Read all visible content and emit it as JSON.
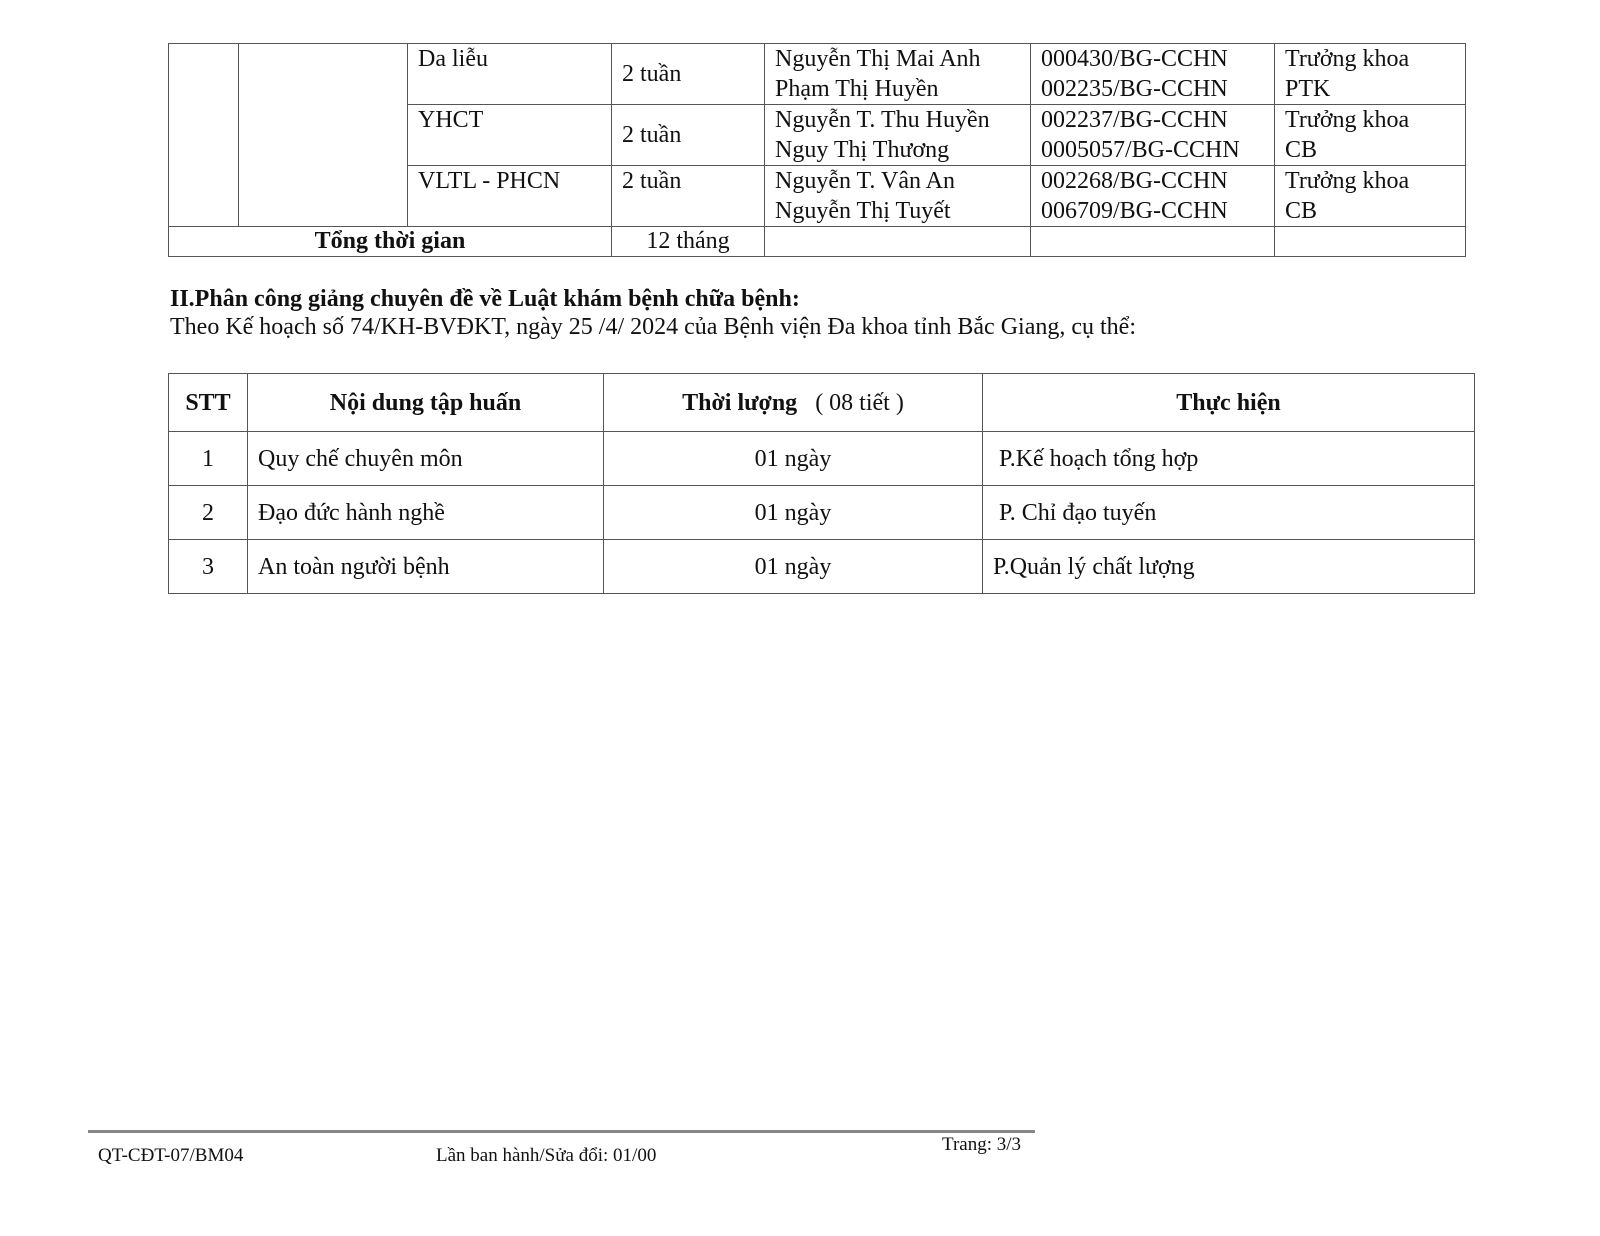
{
  "table1": {
    "rows": [
      {
        "subject": "Da liễu",
        "duration": "2 tuần",
        "names": [
          "Nguyễn Thị Mai Anh",
          "Phạm Thị Huyền"
        ],
        "certs": [
          "000430/BG-CCHN",
          "002235/BG-CCHN"
        ],
        "role": [
          "Trưởng khoa",
          "PTK"
        ]
      },
      {
        "subject": "YHCT",
        "duration": "2 tuần",
        "names": [
          "Nguyễn T. Thu Huyền",
          "Nguy Thị Thương"
        ],
        "certs": [
          "002237/BG-CCHN",
          "0005057/BG-CCHN"
        ],
        "role": [
          "Trưởng khoa",
          "CB"
        ]
      },
      {
        "subject": "VLTL - PHCN",
        "duration": "2 tuần",
        "names": [
          "Nguyễn T. Vân An",
          "Nguyễn Thị Tuyết"
        ],
        "certs": [
          "002268/BG-CCHN",
          "006709/BG-CCHN"
        ],
        "role": [
          "Trưởng khoa",
          "CB"
        ]
      }
    ],
    "total_label": "Tổng thời gian",
    "total_value": "12 tháng"
  },
  "section2": {
    "title": "II.Phân công giảng chuyên đề về Luật khám bệnh chữa bệnh:",
    "text": "Theo Kế hoạch số 74/KH-BVĐKT, ngày 25 /4/ 2024 của Bệnh viện Đa khoa tỉnh Bắc Giang, cụ thể:"
  },
  "table2": {
    "headers": [
      "STT",
      "Nội dung tập huấn",
      "Thời lượng",
      "( 08 tiết )",
      "Thực hiện"
    ],
    "rows": [
      [
        "1",
        "Quy chế chuyên môn",
        "01 ngày",
        "P.Kế hoạch tổng hợp"
      ],
      [
        "2",
        "Đạo đức hành nghề",
        "01 ngày",
        "P. Chỉ đạo tuyến"
      ],
      [
        "3",
        "An toàn người bệnh",
        "01 ngày",
        "P.Quản lý chất lượng"
      ]
    ]
  },
  "footer": {
    "code": "QT-CĐT-07/BM04",
    "revision": "Lần ban hành/Sửa đổi: 01/00",
    "page": "Trang: 3/3"
  }
}
